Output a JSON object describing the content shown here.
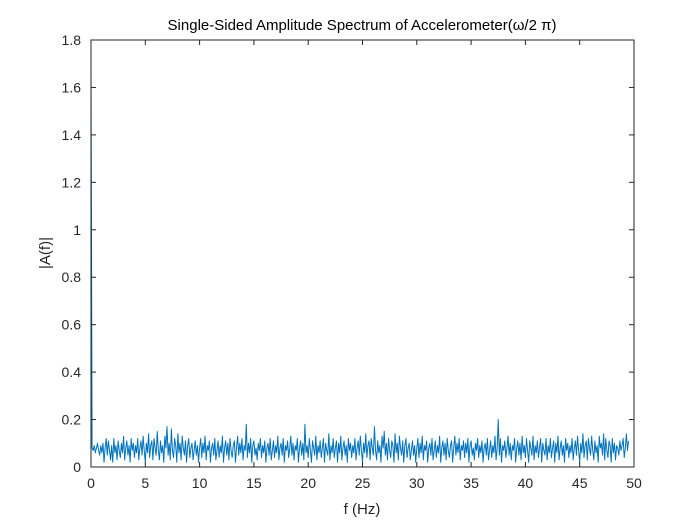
{
  "colors": {
    "series": "#0072BD",
    "axis": "#262626",
    "background": "#ffffff"
  },
  "chart_data": {
    "type": "line",
    "title": "Single-Sided Amplitude Spectrum of Accelerometer(ω/2 π)",
    "xlabel": "f (Hz)",
    "ylabel": "|A(f)|",
    "xlim": [
      0,
      50
    ],
    "ylim": [
      0,
      1.8
    ],
    "x_ticks": [
      "0",
      "5",
      "10",
      "15",
      "20",
      "25",
      "30",
      "35",
      "40",
      "45",
      "50"
    ],
    "y_ticks": [
      "0",
      "0.2",
      "0.4",
      "0.6",
      "0.8",
      "1",
      "1.2",
      "1.4",
      "1.6",
      "1.8"
    ],
    "grid": false,
    "box": true,
    "x_step": 0.1,
    "series": [
      {
        "values": [
          1.7,
          0.08,
          0.07,
          0.09,
          0.06,
          0.08,
          0.1,
          0.07,
          0.05,
          0.09,
          0.06,
          0.1,
          0.02,
          0.08,
          0.12,
          0.05,
          0.11,
          0.07,
          0.03,
          0.09,
          0.02,
          0.12,
          0.06,
          0.09,
          0.03,
          0.11,
          0.07,
          0.04,
          0.1,
          0.06,
          0.13,
          0.03,
          0.08,
          0.11,
          0.05,
          0.09,
          0.02,
          0.12,
          0.07,
          0.1,
          0.04,
          0.09,
          0.06,
          0.12,
          0.03,
          0.08,
          0.11,
          0.05,
          0.13,
          0.07,
          0.02,
          0.1,
          0.06,
          0.14,
          0.04,
          0.09,
          0.11,
          0.03,
          0.12,
          0.08,
          0.05,
          0.15,
          0.07,
          0.03,
          0.11,
          0.06,
          0.09,
          0.02,
          0.13,
          0.08,
          0.17,
          0.05,
          0.1,
          0.03,
          0.16,
          0.07,
          0.04,
          0.12,
          0.09,
          0.02,
          0.14,
          0.06,
          0.1,
          0.03,
          0.13,
          0.08,
          0.05,
          0.11,
          0.02,
          0.09,
          0.12,
          0.04,
          0.08,
          0.1,
          0.03,
          0.07,
          0.11,
          0.05,
          0.09,
          0.02,
          0.08,
          0.12,
          0.04,
          0.1,
          0.06,
          0.13,
          0.03,
          0.09,
          0.07,
          0.11,
          0.02,
          0.08,
          0.1,
          0.05,
          0.12,
          0.03,
          0.07,
          0.11,
          0.04,
          0.09,
          0.06,
          0.13,
          0.02,
          0.08,
          0.11,
          0.05,
          0.1,
          0.03,
          0.12,
          0.07,
          0.04,
          0.09,
          0.11,
          0.02,
          0.08,
          0.13,
          0.05,
          0.1,
          0.06,
          0.12,
          0.03,
          0.09,
          0.07,
          0.18,
          0.04,
          0.1,
          0.06,
          0.12,
          0.02,
          0.09,
          0.11,
          0.05,
          0.08,
          0.03,
          0.1,
          0.07,
          0.12,
          0.04,
          0.09,
          0.06,
          0.11,
          0.02,
          0.08,
          0.1,
          0.05,
          0.12,
          0.03,
          0.07,
          0.11,
          0.04,
          0.09,
          0.06,
          0.13,
          0.03,
          0.08,
          0.1,
          0.05,
          0.12,
          0.02,
          0.09,
          0.07,
          0.11,
          0.04,
          0.08,
          0.13,
          0.05,
          0.1,
          0.03,
          0.09,
          0.07,
          0.12,
          0.02,
          0.08,
          0.11,
          0.05,
          0.1,
          0.03,
          0.18,
          0.06,
          0.09,
          0.04,
          0.12,
          0.07,
          0.02,
          0.11,
          0.08,
          0.05,
          0.13,
          0.03,
          0.09,
          0.06,
          0.11,
          0.04,
          0.08,
          0.12,
          0.02,
          0.1,
          0.07,
          0.05,
          0.14,
          0.03,
          0.09,
          0.06,
          0.12,
          0.04,
          0.08,
          0.11,
          0.02,
          0.1,
          0.06,
          0.13,
          0.03,
          0.08,
          0.11,
          0.05,
          0.09,
          0.02,
          0.12,
          0.07,
          0.1,
          0.04,
          0.09,
          0.06,
          0.12,
          0.03,
          0.08,
          0.11,
          0.05,
          0.13,
          0.07,
          0.02,
          0.1,
          0.06,
          0.14,
          0.04,
          0.09,
          0.11,
          0.03,
          0.12,
          0.08,
          0.05,
          0.17,
          0.07,
          0.03,
          0.11,
          0.06,
          0.09,
          0.02,
          0.13,
          0.08,
          0.15,
          0.05,
          0.1,
          0.03,
          0.12,
          0.07,
          0.04,
          0.11,
          0.09,
          0.02,
          0.14,
          0.06,
          0.1,
          0.03,
          0.13,
          0.08,
          0.05,
          0.11,
          0.02,
          0.09,
          0.12,
          0.04,
          0.08,
          0.1,
          0.03,
          0.07,
          0.11,
          0.05,
          0.09,
          0.02,
          0.08,
          0.12,
          0.04,
          0.1,
          0.06,
          0.13,
          0.03,
          0.09,
          0.07,
          0.11,
          0.02,
          0.08,
          0.1,
          0.05,
          0.12,
          0.03,
          0.07,
          0.11,
          0.04,
          0.09,
          0.06,
          0.13,
          0.02,
          0.08,
          0.11,
          0.05,
          0.1,
          0.03,
          0.12,
          0.07,
          0.04,
          0.09,
          0.11,
          0.02,
          0.08,
          0.13,
          0.05,
          0.1,
          0.06,
          0.12,
          0.03,
          0.09,
          0.07,
          0.11,
          0.04,
          0.1,
          0.06,
          0.12,
          0.02,
          0.09,
          0.11,
          0.05,
          0.08,
          0.03,
          0.1,
          0.07,
          0.12,
          0.04,
          0.09,
          0.06,
          0.11,
          0.02,
          0.08,
          0.1,
          0.05,
          0.12,
          0.03,
          0.07,
          0.11,
          0.04,
          0.09,
          0.06,
          0.13,
          0.03,
          0.08,
          0.2,
          0.05,
          0.12,
          0.02,
          0.09,
          0.07,
          0.11,
          0.04,
          0.08,
          0.13,
          0.05,
          0.1,
          0.03,
          0.09,
          0.07,
          0.12,
          0.02,
          0.08,
          0.11,
          0.05,
          0.1,
          0.03,
          0.13,
          0.06,
          0.09,
          0.04,
          0.12,
          0.07,
          0.02,
          0.11,
          0.08,
          0.05,
          0.13,
          0.03,
          0.09,
          0.06,
          0.11,
          0.04,
          0.08,
          0.12,
          0.02,
          0.1,
          0.07,
          0.05,
          0.12,
          0.03,
          0.09,
          0.06,
          0.12,
          0.04,
          0.08,
          0.11,
          0.02,
          0.1,
          0.06,
          0.13,
          0.03,
          0.08,
          0.11,
          0.05,
          0.09,
          0.02,
          0.12,
          0.07,
          0.1,
          0.04,
          0.09,
          0.06,
          0.12,
          0.03,
          0.08,
          0.11,
          0.05,
          0.13,
          0.07,
          0.02,
          0.1,
          0.06,
          0.14,
          0.04,
          0.09,
          0.11,
          0.03,
          0.12,
          0.08,
          0.05,
          0.13,
          0.07,
          0.03,
          0.11,
          0.06,
          0.09,
          0.02,
          0.13,
          0.08,
          0.1,
          0.05,
          0.14,
          0.03,
          0.12,
          0.07,
          0.04,
          0.11,
          0.09,
          0.02,
          0.12,
          0.06,
          0.1,
          0.03,
          0.09,
          0.08,
          0.05,
          0.11,
          0.07,
          0.09,
          0.12,
          0.04,
          0.08,
          0.14,
          0.07,
          0.11
        ]
      }
    ]
  }
}
